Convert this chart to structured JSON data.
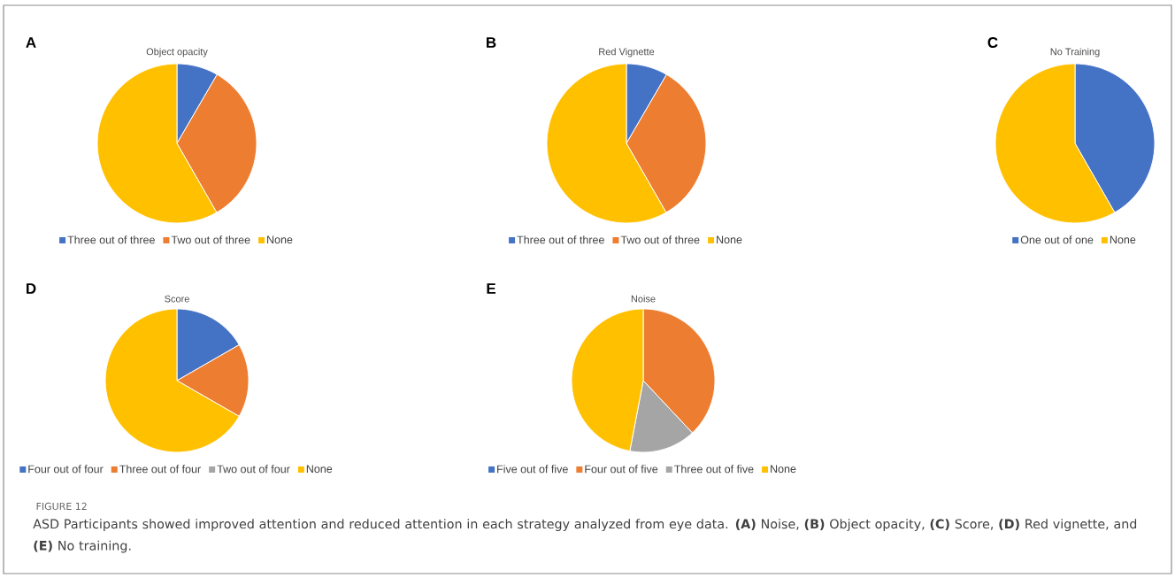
{
  "chart_data": [
    {
      "type": "pie",
      "title": "Object opacity",
      "categories": [
        "Three out of three",
        "Two out of three",
        "None"
      ],
      "values": [
        8.4,
        33.3,
        58.3
      ],
      "colors": [
        "#4472c4",
        "#ed7d31",
        "#ffc000"
      ],
      "legend": "bottom",
      "annotations": [
        "A",
        "FIGURE 12",
        "ASD Participants showed improved attention and reduced attention in each strategy analyzed from eye data. **(A)** Noise, **(B)** Object opacity, **(C)** Score, **(D)** Red vignette, and **(E)** No training."
      ]
    },
    {
      "type": "pie",
      "title": "Red Vignette",
      "categories": [
        "Three out of three",
        "Two out of three",
        "None"
      ],
      "values": [
        8.4,
        33.3,
        58.3
      ],
      "colors": [
        "#4472c4",
        "#ed7d31",
        "#ffc000"
      ],
      "legend": "bottom",
      "annotations": [
        "B"
      ]
    },
    {
      "type": "pie",
      "title": "No Training",
      "categories": [
        "One out of one",
        "None"
      ],
      "values": [
        41.7,
        58.3
      ],
      "colors": [
        "#4472c4",
        "#ffc000"
      ],
      "legend": "bottom",
      "annotations": [
        "C"
      ]
    },
    {
      "type": "pie",
      "title": "Score",
      "categories": [
        "Four out of four",
        "Three out of four",
        "Two out of four",
        "None"
      ],
      "values": [
        16.7,
        16.6,
        0,
        66.7
      ],
      "colors": [
        "#4472c4",
        "#ed7d31",
        "#a5a5a5",
        "#ffc000"
      ],
      "legend": "bottom",
      "annotations": [
        "D"
      ]
    },
    {
      "type": "pie",
      "title": "Noise",
      "categories": [
        "Five out of five",
        "Four out of five",
        "Three out of five",
        "None"
      ],
      "values": [
        0,
        38,
        15,
        47
      ],
      "colors": [
        "#4472c4",
        "#ed7d31",
        "#a5a5a5",
        "#ffc000"
      ],
      "legend": "bottom",
      "annotations": [
        "E"
      ]
    }
  ]
}
